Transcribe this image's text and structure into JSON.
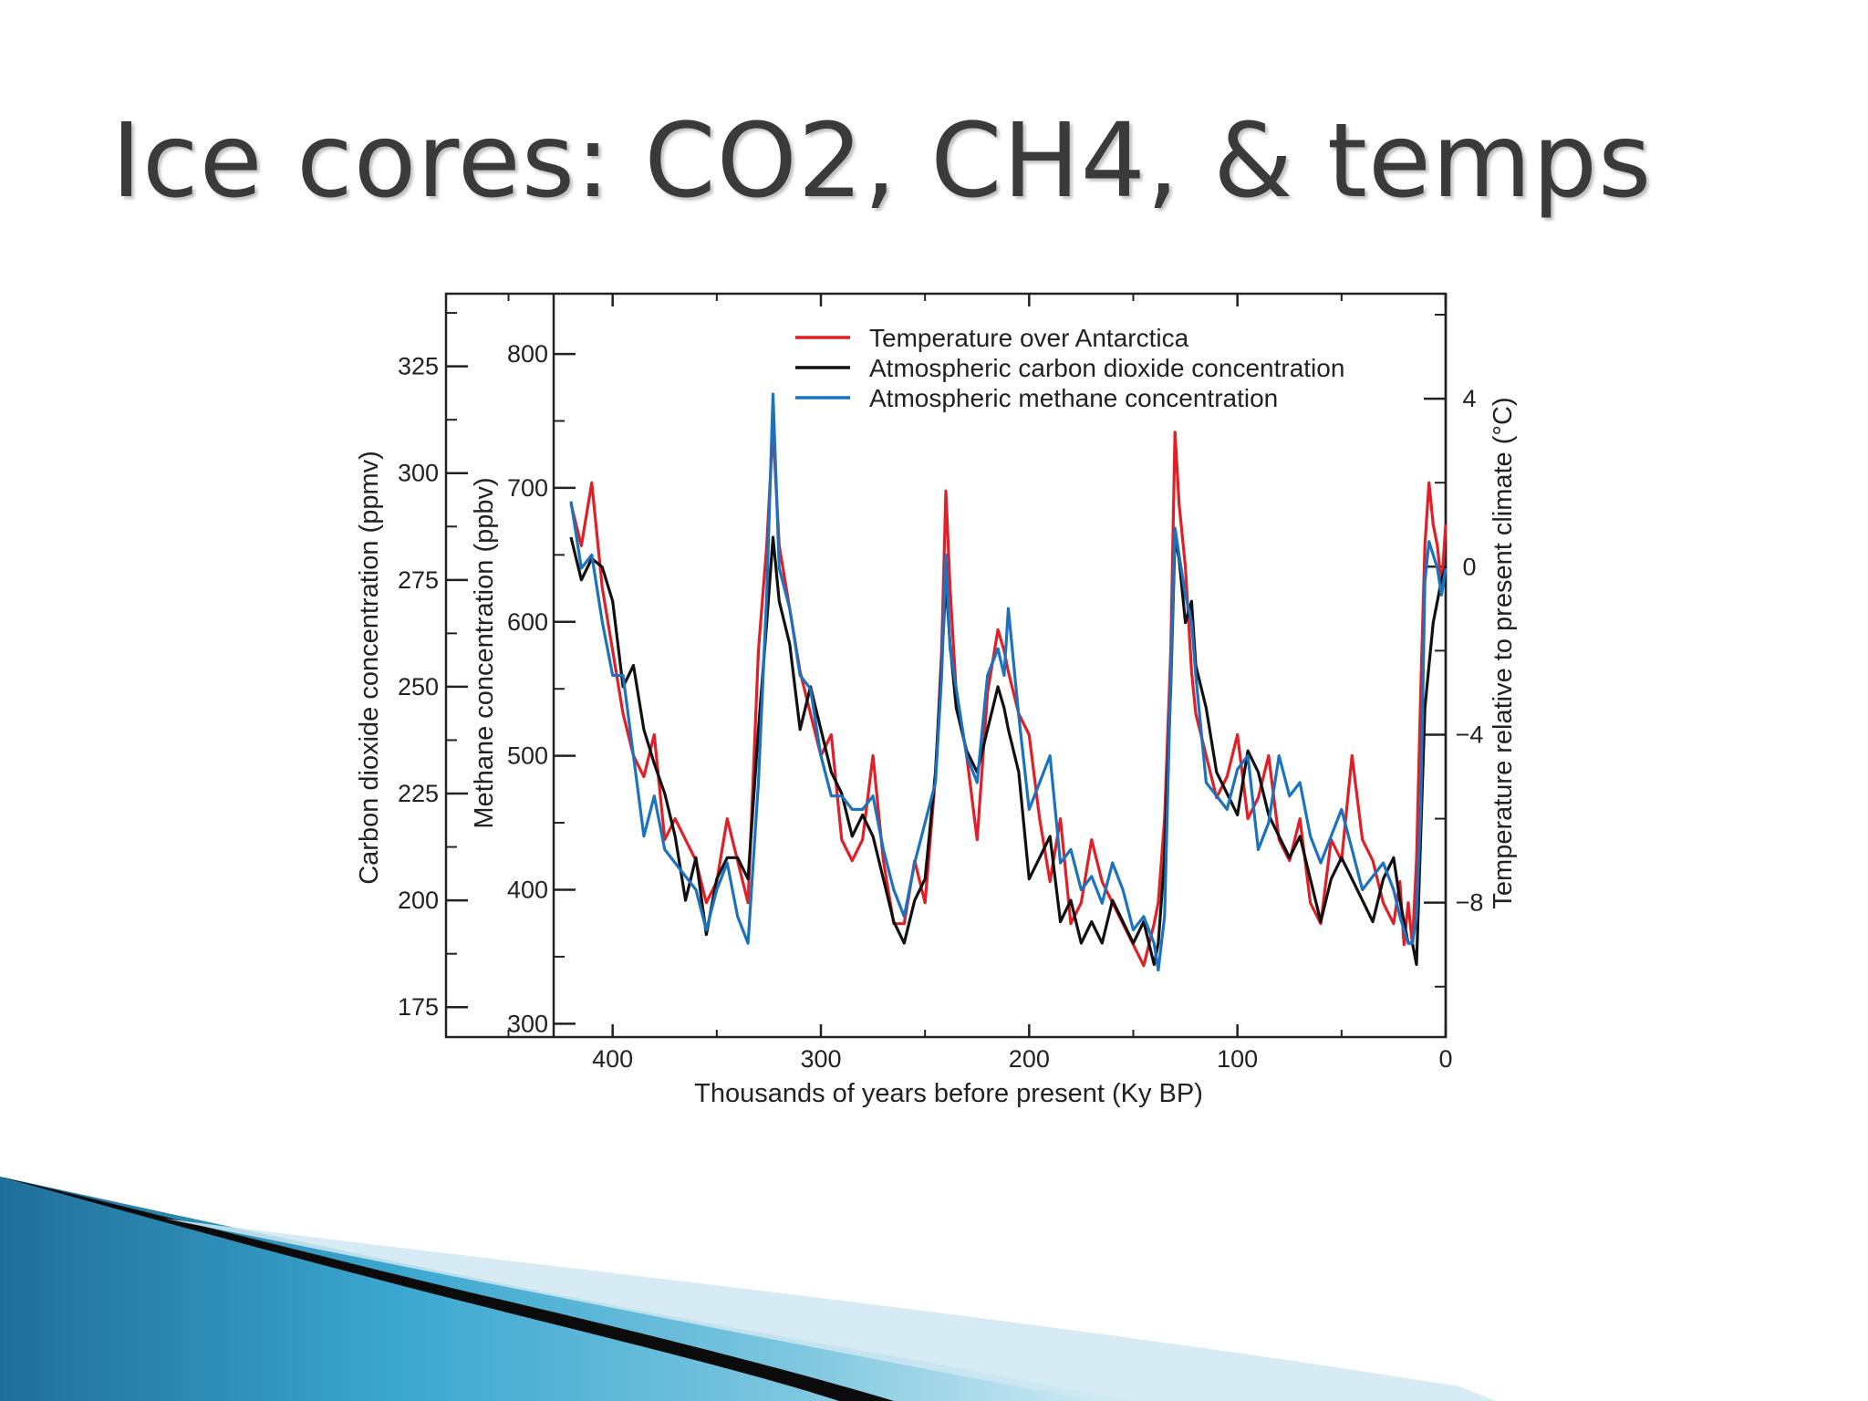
{
  "slide": {
    "title": "Ice cores: CO2, CH4, & temps"
  },
  "chart_data": {
    "type": "line",
    "xlabel": "Thousands of years before present (Ky BP)",
    "xlim": [
      480,
      0
    ],
    "x_ticks": [
      "400",
      "300",
      "200",
      "100",
      "0"
    ],
    "axes": {
      "co2": {
        "label": "Carbon dioxide concentration (ppmv)",
        "lim": [
          168,
          342
        ],
        "ticks": [
          "325",
          "300",
          "275",
          "250",
          "225",
          "200",
          "175"
        ]
      },
      "ch4": {
        "label": "Methane concentration (ppbv)",
        "lim": [
          290,
          845
        ],
        "ticks": [
          "800",
          "700",
          "600",
          "500",
          "400",
          "300"
        ]
      },
      "temp": {
        "label": "Temperature relative to present climate (°C)",
        "lim": [
          -11.2,
          6.5
        ],
        "ticks": [
          "4",
          "0",
          "−4",
          "−8"
        ]
      }
    },
    "legend": {
      "position": "top-center"
    },
    "series": [
      {
        "name": "Temperature over Antarctica",
        "color": "#e01f26",
        "axis": "temp",
        "x": [
          420,
          415,
          410,
          405,
          400,
          395,
          390,
          385,
          380,
          375,
          370,
          365,
          360,
          355,
          350,
          345,
          340,
          335,
          330,
          326,
          323,
          320,
          315,
          310,
          305,
          300,
          295,
          290,
          285,
          280,
          275,
          270,
          265,
          260,
          255,
          250,
          245,
          242,
          240,
          238,
          235,
          230,
          225,
          220,
          215,
          212,
          210,
          205,
          200,
          195,
          190,
          185,
          180,
          175,
          170,
          165,
          160,
          155,
          150,
          145,
          140,
          138,
          135,
          132,
          130,
          128,
          125,
          122,
          120,
          115,
          110,
          105,
          100,
          95,
          90,
          85,
          80,
          75,
          70,
          65,
          60,
          55,
          50,
          45,
          40,
          35,
          30,
          25,
          22,
          20,
          18,
          16,
          14,
          12,
          10,
          8,
          6,
          4,
          2,
          0
        ],
        "y": [
          1.5,
          0.5,
          2.0,
          -0.5,
          -2.0,
          -3.5,
          -4.5,
          -5.0,
          -4.0,
          -6.5,
          -6.0,
          -6.5,
          -7.0,
          -8.0,
          -7.5,
          -6.0,
          -7.0,
          -8.0,
          -2.0,
          0.5,
          3.3,
          0.5,
          -1.0,
          -2.5,
          -3.5,
          -4.5,
          -4.0,
          -6.5,
          -7.0,
          -6.5,
          -4.5,
          -7.0,
          -8.5,
          -8.5,
          -7.0,
          -8.0,
          -5.0,
          -2.0,
          1.8,
          -0.5,
          -3.0,
          -4.5,
          -6.5,
          -3.0,
          -1.5,
          -2.0,
          -2.5,
          -3.5,
          -4.0,
          -6.0,
          -7.5,
          -6.0,
          -8.5,
          -8.0,
          -6.5,
          -7.5,
          -8.0,
          -8.5,
          -9.0,
          -9.5,
          -8.5,
          -8.0,
          -6.0,
          -2.0,
          3.2,
          1.5,
          0.0,
          -2.5,
          -3.5,
          -4.5,
          -5.5,
          -5.0,
          -4.0,
          -6.0,
          -5.5,
          -4.5,
          -6.5,
          -7.0,
          -6.0,
          -8.0,
          -8.5,
          -6.5,
          -7.0,
          -4.5,
          -6.5,
          -7.0,
          -8.0,
          -8.5,
          -7.5,
          -9.0,
          -8.0,
          -9.0,
          -7.0,
          -3.0,
          0.5,
          2.0,
          1.0,
          0.5,
          -0.5,
          1.0
        ]
      },
      {
        "name": "Atmospheric carbon dioxide concentration",
        "color": "#111111",
        "axis": "co2",
        "x": [
          420,
          415,
          410,
          405,
          400,
          395,
          390,
          385,
          380,
          375,
          370,
          365,
          360,
          355,
          350,
          345,
          340,
          335,
          330,
          326,
          323,
          320,
          315,
          310,
          305,
          300,
          295,
          290,
          285,
          280,
          275,
          270,
          265,
          260,
          255,
          250,
          245,
          242,
          240,
          238,
          235,
          230,
          225,
          220,
          215,
          212,
          210,
          205,
          200,
          195,
          190,
          185,
          180,
          175,
          170,
          165,
          160,
          155,
          150,
          145,
          140,
          138,
          135,
          132,
          130,
          128,
          125,
          122,
          120,
          115,
          110,
          105,
          100,
          95,
          90,
          85,
          80,
          75,
          70,
          65,
          60,
          55,
          50,
          45,
          40,
          35,
          30,
          25,
          22,
          20,
          18,
          16,
          14,
          12,
          10,
          8,
          6,
          4,
          2,
          0
        ],
        "y": [
          285,
          275,
          280,
          278,
          270,
          250,
          255,
          240,
          232,
          225,
          215,
          200,
          210,
          192,
          205,
          210,
          210,
          205,
          240,
          265,
          285,
          270,
          260,
          240,
          250,
          240,
          230,
          225,
          215,
          220,
          215,
          205,
          195,
          190,
          200,
          205,
          230,
          255,
          275,
          260,
          245,
          235,
          230,
          240,
          250,
          245,
          240,
          230,
          205,
          210,
          215,
          195,
          200,
          190,
          195,
          190,
          200,
          195,
          190,
          195,
          185,
          190,
          210,
          250,
          285,
          280,
          265,
          270,
          255,
          245,
          230,
          225,
          220,
          235,
          230,
          220,
          215,
          210,
          215,
          205,
          195,
          205,
          210,
          205,
          200,
          195,
          205,
          210,
          200,
          195,
          190,
          190,
          185,
          215,
          245,
          255,
          265,
          270,
          275,
          278
        ]
      },
      {
        "name": "Atmospheric methane concentration",
        "color": "#1b72be",
        "axis": "ch4",
        "x": [
          420,
          415,
          410,
          405,
          400,
          395,
          390,
          385,
          380,
          375,
          370,
          365,
          360,
          355,
          350,
          345,
          340,
          335,
          330,
          326,
          323,
          320,
          315,
          310,
          305,
          300,
          295,
          290,
          285,
          280,
          275,
          270,
          265,
          260,
          255,
          250,
          245,
          242,
          240,
          238,
          235,
          230,
          225,
          220,
          215,
          212,
          210,
          205,
          200,
          195,
          190,
          185,
          180,
          175,
          170,
          165,
          160,
          155,
          150,
          145,
          140,
          138,
          135,
          132,
          130,
          128,
          125,
          122,
          120,
          115,
          110,
          105,
          100,
          95,
          90,
          85,
          80,
          75,
          70,
          65,
          60,
          55,
          50,
          45,
          40,
          35,
          30,
          25,
          22,
          20,
          18,
          16,
          14,
          12,
          10,
          8,
          6,
          4,
          2,
          0
        ],
        "y": [
          690,
          640,
          650,
          600,
          560,
          560,
          500,
          440,
          470,
          430,
          420,
          410,
          400,
          370,
          400,
          420,
          380,
          360,
          480,
          620,
          770,
          640,
          610,
          560,
          550,
          500,
          470,
          470,
          460,
          460,
          470,
          430,
          400,
          380,
          420,
          450,
          480,
          560,
          650,
          580,
          550,
          500,
          480,
          560,
          580,
          560,
          610,
          530,
          460,
          480,
          500,
          420,
          430,
          400,
          410,
          390,
          420,
          400,
          370,
          380,
          360,
          340,
          380,
          560,
          670,
          650,
          620,
          600,
          560,
          480,
          470,
          460,
          490,
          500,
          430,
          450,
          500,
          470,
          480,
          440,
          420,
          440,
          460,
          430,
          400,
          410,
          420,
          400,
          380,
          370,
          360,
          360,
          380,
          460,
          630,
          660,
          650,
          640,
          620,
          640
        ]
      }
    ]
  }
}
